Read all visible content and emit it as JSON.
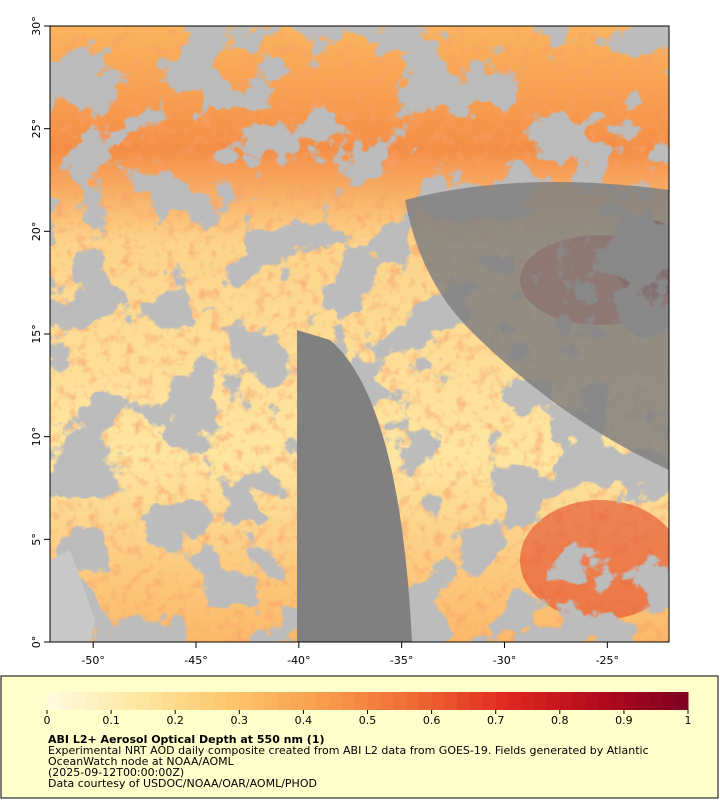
{
  "map": {
    "xaxis": {
      "lim": [
        -52.1,
        -22
      ],
      "ticks": [
        {
          "value": -50,
          "label": "-50°"
        },
        {
          "value": -45,
          "label": "-45°"
        },
        {
          "value": -40,
          "label": "-40°"
        },
        {
          "value": -35,
          "label": "-35°"
        },
        {
          "value": -30,
          "label": "-30°"
        },
        {
          "value": -25,
          "label": "-25°"
        }
      ]
    },
    "yaxis": {
      "lim": [
        0,
        30
      ],
      "ticks": [
        {
          "value": 0,
          "label": "0°"
        },
        {
          "value": 5,
          "label": "5°"
        },
        {
          "value": 10,
          "label": "10°"
        },
        {
          "value": 15,
          "label": "15°"
        },
        {
          "value": 20,
          "label": "20°"
        },
        {
          "value": 25,
          "label": "25°"
        },
        {
          "value": 30,
          "label": "30°"
        }
      ]
    }
  },
  "colorbar": {
    "lim": [
      0,
      1
    ],
    "ticks": [
      0,
      0.1,
      0.2,
      0.3,
      0.4,
      0.5,
      0.6,
      0.7,
      0.8,
      0.9,
      1
    ],
    "colors": [
      "#fffbe0",
      "#fee7a0",
      "#fdc56b",
      "#f89d4c",
      "#f06a35",
      "#e02a1f",
      "#b40a1d",
      "#7d0022"
    ]
  },
  "legend": {
    "title": "ABI L2+ Aerosol Optical Depth at 550 nm (1)",
    "lines": [
      "Experimental NRT AOD daily composite created from ABI L2 data from GOES-19. Fields generated by Atlantic",
      "OceanWatch node at NOAA/AOML",
      "(2025-09-12T00:00:00Z)",
      "Data courtesy of USDOC/NOAA/OAR/AOML/PHOD"
    ]
  }
}
